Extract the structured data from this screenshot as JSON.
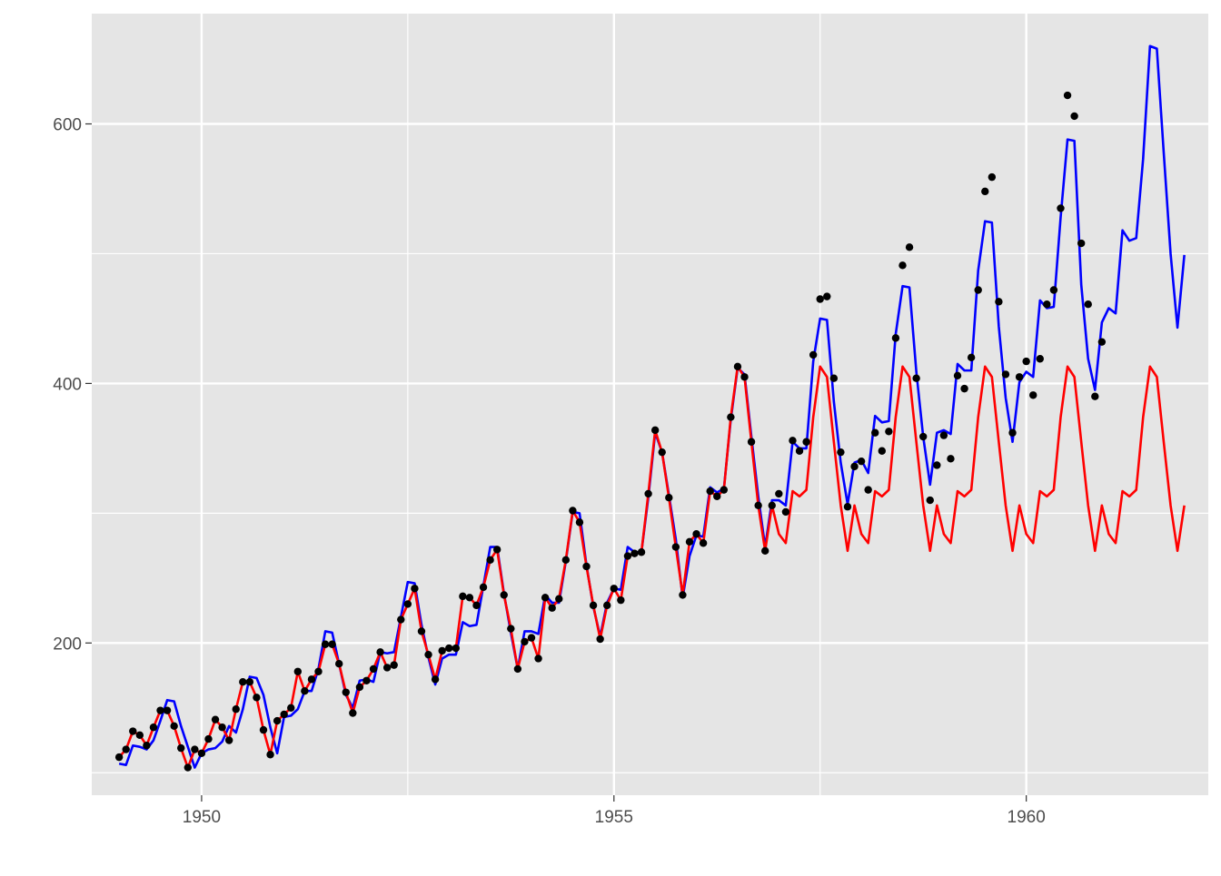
{
  "chart_data": {
    "type": "line",
    "title": "",
    "xlabel": "",
    "ylabel": "",
    "xlim": [
      1948.668,
      1962.207
    ],
    "ylim": [
      82.7,
      685
    ],
    "x_ticks": [
      1950,
      1955,
      1960
    ],
    "x_tick_labels": [
      "1950",
      "1955",
      "1960"
    ],
    "x_minor_ticks": [
      1952.5,
      1957.5
    ],
    "y_ticks": [
      200,
      400,
      600
    ],
    "y_tick_labels": [
      "200",
      "400",
      "600"
    ],
    "y_minor_ticks": [
      100,
      300,
      500
    ],
    "grid": true,
    "legend": "none",
    "colors": {
      "panel_background": "#e5e5e5",
      "grid": "#ffffff",
      "observed_points": "#000000",
      "blue_series": "#0000ff",
      "red_series": "#ff0000",
      "tick_text": "#4d4d4d"
    },
    "points_x_start": 1949.0,
    "blue_x_start": 1949.0,
    "red_x_start": 1949.0,
    "x_step": 0.0833333,
    "points_y": [
      112,
      118,
      132,
      129,
      121,
      135,
      148,
      148,
      136,
      119,
      104,
      118,
      115,
      126,
      141,
      135,
      125,
      149,
      170,
      170,
      158,
      133,
      114,
      140,
      145,
      150,
      178,
      163,
      172,
      178,
      199,
      199,
      184,
      162,
      146,
      166,
      171,
      180,
      193,
      181,
      183,
      218,
      230,
      242,
      209,
      191,
      172,
      194,
      196,
      196,
      236,
      235,
      229,
      243,
      264,
      272,
      237,
      211,
      180,
      201,
      204,
      188,
      235,
      227,
      234,
      264,
      302,
      293,
      259,
      229,
      203,
      229,
      242,
      233,
      267,
      269,
      270,
      315,
      364,
      347,
      312,
      274,
      237,
      278,
      284,
      277,
      317,
      313,
      318,
      374,
      413,
      405,
      355,
      306,
      271,
      306,
      315,
      301,
      356,
      348,
      355,
      422,
      465,
      467,
      404,
      347,
      305,
      336,
      340,
      318,
      362,
      348,
      363,
      435,
      491,
      505,
      404,
      359,
      310,
      337,
      360,
      342,
      406,
      396,
      420,
      472,
      548,
      559,
      463,
      407,
      362,
      405,
      417,
      391,
      419,
      461,
      472,
      535,
      622,
      606,
      508,
      461,
      390,
      432
    ],
    "blue_y": [
      107,
      106,
      121,
      120,
      118,
      125,
      140,
      156,
      155,
      136,
      120,
      104,
      115,
      118,
      119,
      124,
      136,
      131,
      149,
      174,
      173,
      160,
      135,
      115,
      143,
      144,
      149,
      163,
      163,
      180,
      209,
      208,
      184,
      160,
      150,
      171,
      172,
      170,
      193,
      192,
      193,
      220,
      247,
      246,
      214,
      189,
      168,
      188,
      191,
      191,
      216,
      213,
      214,
      244,
      274,
      274,
      238,
      208,
      180,
      209,
      209,
      207,
      237,
      231,
      231,
      263,
      301,
      300,
      260,
      228,
      205,
      231,
      242,
      241,
      274,
      270,
      270,
      312,
      362,
      347,
      314,
      280,
      235,
      267,
      283,
      282,
      320,
      316,
      319,
      372,
      412,
      407,
      359,
      313,
      274,
      310,
      310,
      306,
      355,
      350,
      350,
      417,
      450,
      449,
      386,
      339,
      307,
      339,
      341,
      331,
      375,
      370,
      371,
      438,
      475,
      474,
      409,
      359,
      322,
      362,
      364,
      361,
      415,
      410,
      410,
      487,
      525,
      524,
      444,
      389,
      355,
      401,
      409,
      405,
      464,
      458,
      459,
      528,
      588,
      587,
      476,
      419,
      395,
      447,
      458,
      454,
      518,
      510,
      512,
      573,
      660,
      658,
      578,
      500,
      443,
      499
    ],
    "red_y": [
      112,
      118,
      132,
      129,
      121,
      135,
      148,
      148,
      136,
      119,
      104,
      118,
      115,
      126,
      141,
      135,
      125,
      149,
      170,
      170,
      158,
      133,
      114,
      140,
      145,
      150,
      178,
      163,
      172,
      178,
      199,
      199,
      184,
      162,
      146,
      166,
      171,
      180,
      193,
      181,
      183,
      218,
      230,
      242,
      209,
      191,
      172,
      194,
      196,
      196,
      236,
      235,
      229,
      243,
      264,
      272,
      237,
      211,
      180,
      201,
      204,
      188,
      235,
      227,
      234,
      264,
      302,
      293,
      259,
      229,
      203,
      229,
      242,
      233,
      267,
      269,
      270,
      315,
      364,
      347,
      312,
      274,
      237,
      278,
      284,
      277,
      317,
      313,
      318,
      374,
      413,
      405,
      355,
      306,
      271,
      306,
      284,
      277,
      317,
      313,
      318,
      374,
      413,
      405,
      355,
      306,
      271,
      306,
      284,
      277,
      317,
      313,
      318,
      374,
      413,
      405,
      355,
      306,
      271,
      306,
      284,
      277,
      317,
      313,
      318,
      374,
      413,
      405,
      355,
      306,
      271,
      306,
      284,
      277,
      317,
      313,
      318,
      374,
      413,
      405,
      355,
      306,
      271,
      306,
      284,
      277,
      317,
      313,
      318,
      374,
      413,
      405,
      355,
      306,
      271,
      306
    ]
  }
}
